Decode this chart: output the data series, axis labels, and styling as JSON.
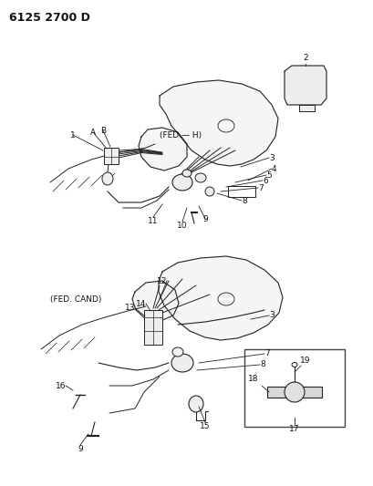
{
  "title": "6125 2700 D",
  "bg": "#ffffff",
  "lc": "#222222",
  "tc": "#111111",
  "ec_light": "#888888",
  "fill_engine": "#f5f5f5",
  "fill_light": "#eeeeee",
  "top_fed_label": "(FED — H)",
  "bot_fed_label": "(FED. CAND)",
  "top_numbers": [
    "1",
    "A",
    "B",
    "3",
    "4",
    "5",
    "6",
    "7",
    "8",
    "9",
    "10",
    "11"
  ],
  "bot_numbers": [
    "3",
    "7",
    "8",
    "9",
    "12",
    "13",
    "14",
    "15",
    "16"
  ],
  "inset_bot_numbers": [
    "17",
    "18",
    "19"
  ],
  "inset_top_number": "2"
}
